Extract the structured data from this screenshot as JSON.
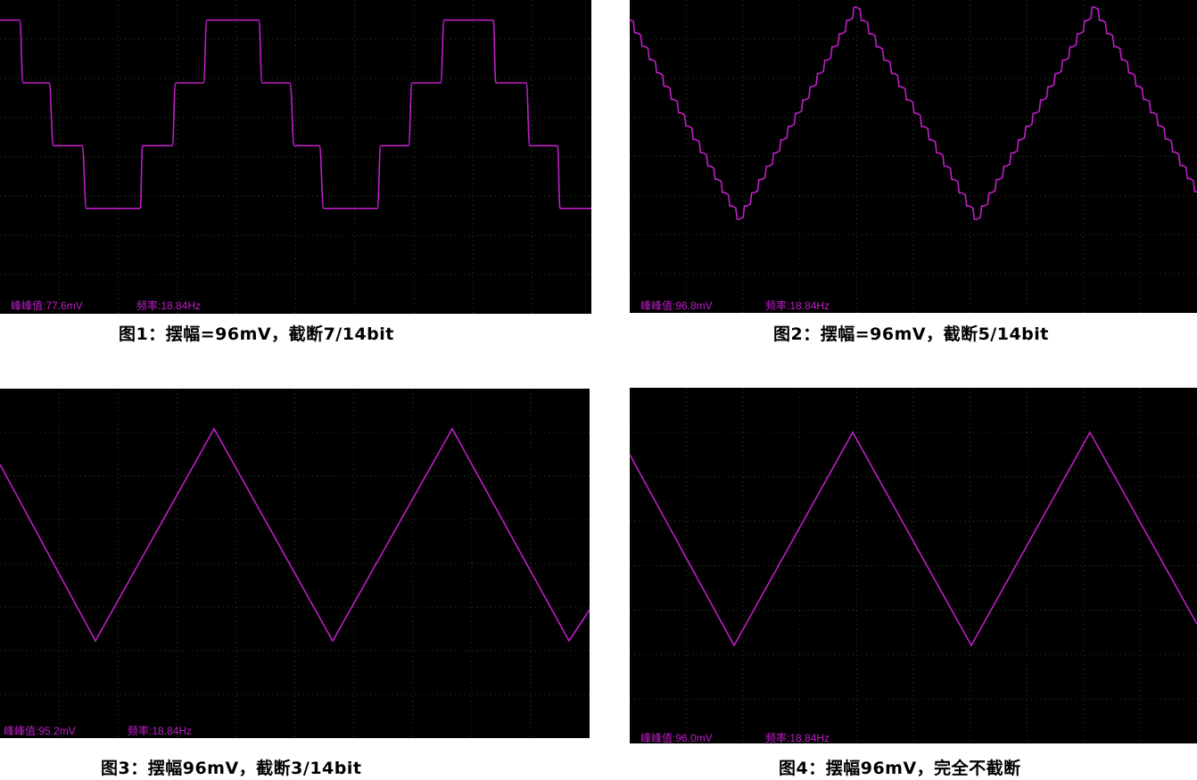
{
  "trace_color": "#c01ec8",
  "grid_color": "#3a3a3a",
  "background_color": "#000000",
  "panels": [
    {
      "caption": "图1：摆幅=96mV，截断7/14bit",
      "peak_label": "峰峰值:77.6mV",
      "freq_label": "频率:18.84Hz",
      "chart_data": {
        "type": "line",
        "waveform": "staircase",
        "levels": 4,
        "levels_y_frac": [
          0.05,
          0.25,
          0.45,
          0.65
        ],
        "peak_to_peak_mV": 77.6,
        "frequency_Hz": 18.84,
        "cycles_shown": 2.5
      }
    },
    {
      "caption": "图2：摆幅=96mV，截断5/14bit",
      "peak_label": "峰峰值:96.8mV",
      "freq_label": "频率:18.84Hz",
      "chart_data": {
        "type": "line",
        "waveform": "stepped-triangle",
        "steps_per_half_cycle": 16,
        "peak_to_peak_mV": 96.8,
        "frequency_Hz": 18.84,
        "cycles_shown": 2.4
      }
    },
    {
      "caption": "图3：摆幅96mV，截断3/14bit",
      "peak_label": "峰峰值:95.2mV",
      "freq_label": "频率:18.84Hz",
      "chart_data": {
        "type": "line",
        "waveform": "triangle",
        "peak_to_peak_mV": 95.2,
        "frequency_Hz": 18.84,
        "cycles_shown": 2.5
      }
    },
    {
      "caption": "图4：摆幅96mV，完全不截断",
      "peak_label": "峰峰值:96.0mV",
      "freq_label": "频率:18.84Hz",
      "chart_data": {
        "type": "line",
        "waveform": "triangle",
        "peak_to_peak_mV": 96.0,
        "frequency_Hz": 18.84,
        "cycles_shown": 2.5
      }
    }
  ]
}
